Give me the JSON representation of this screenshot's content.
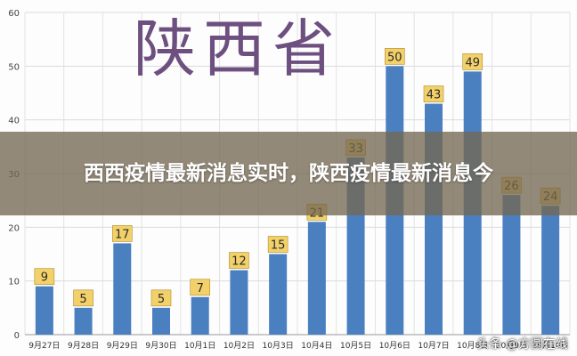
{
  "chart_data": {
    "type": "bar",
    "title": "陕西省",
    "categories": [
      "9月27日",
      "9月28日",
      "9月29日",
      "9月30日",
      "10月1日",
      "10月2日",
      "10月3日",
      "10月4日",
      "10月5日",
      "10月6日",
      "10月7日",
      "10月8日",
      "10月9日",
      "10月10日"
    ],
    "values": [
      9,
      5,
      17,
      5,
      7,
      12,
      15,
      21,
      33,
      50,
      43,
      49,
      26,
      24
    ],
    "ylim": [
      0,
      60
    ],
    "yticks": [
      0,
      10,
      20,
      30,
      40,
      50,
      60
    ],
    "grid": true,
    "bar_color": "#4a7fc0",
    "label_color": "#f3d16a"
  },
  "overlay": {
    "headline": "西西疫情最新消息实时，陕西疫情最新消息今"
  },
  "watermark": "头条 @方圆在线"
}
